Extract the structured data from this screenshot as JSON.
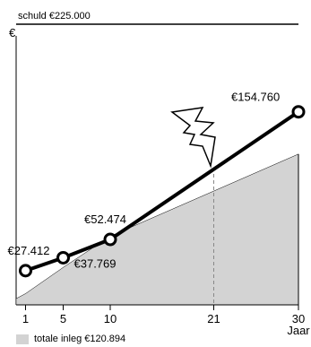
{
  "chart_data": {
    "type": "line",
    "ylabel": "€",
    "xlabel": "Jaar",
    "x_ticks": [
      1,
      5,
      10,
      21,
      30
    ],
    "xlim": [
      0,
      30
    ],
    "debt_line": {
      "label": "schuld €225.000",
      "value": 225000
    },
    "series": [
      {
        "values": [
          {
            "x": 1,
            "y": 27412,
            "label": "€27.412"
          },
          {
            "x": 5,
            "y": 37769,
            "label": "€37.769"
          },
          {
            "x": 10,
            "y": 52474,
            "label": "€52.474"
          },
          {
            "x": 30,
            "y": 154760,
            "label": "€154.760"
          }
        ],
        "color": "#000000"
      }
    ],
    "area": {
      "name": "totale inleg €120.894",
      "color": "#d3d3d3",
      "values": [
        {
          "x": 0,
          "y": 5000
        },
        {
          "x": 1,
          "y": 9000
        },
        {
          "x": 5,
          "y": 30000
        },
        {
          "x": 10,
          "y": 55000
        },
        {
          "x": 30,
          "y": 120894
        }
      ]
    },
    "annotation": {
      "x": 21,
      "icon": "lightning-icon"
    },
    "legend": "bottom-left"
  }
}
